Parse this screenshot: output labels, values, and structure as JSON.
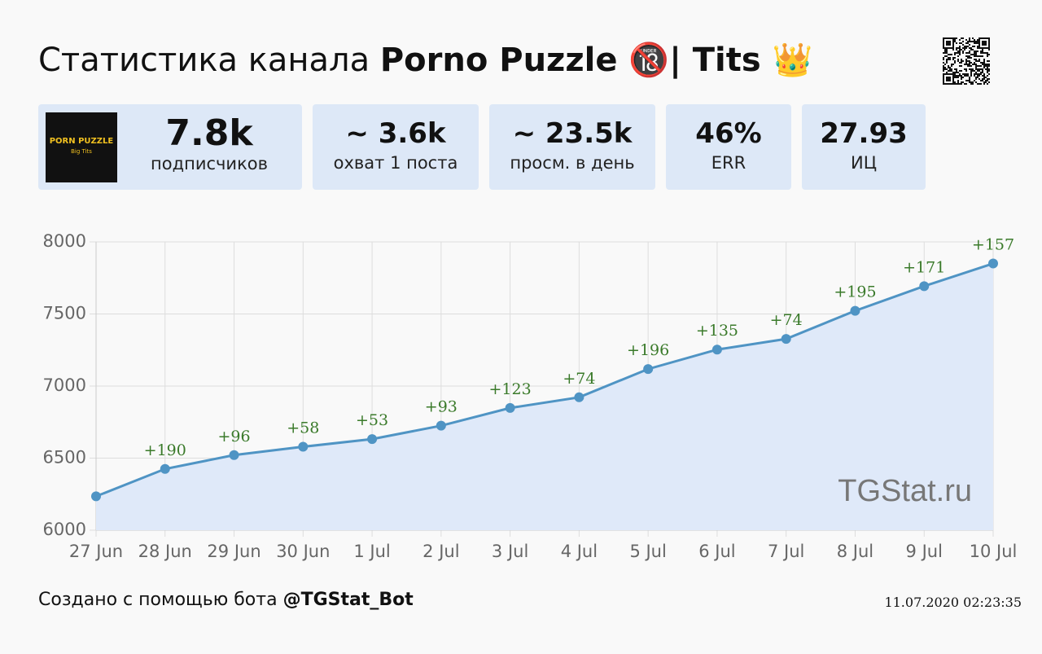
{
  "header": {
    "title_prefix": "Статистика канала",
    "title_channel": "Porno Puzzle 🔞| Tits 👑"
  },
  "logo": {
    "line1": "PORN PUZZLE",
    "line2": "Big Tits"
  },
  "cards": [
    {
      "value": "7.8k",
      "label": "подписчиков"
    },
    {
      "value": "~ 3.6k",
      "label": "охват 1 поста"
    },
    {
      "value": "~ 23.5k",
      "label": "просм. в день"
    },
    {
      "value": "46%",
      "label": "ERR"
    },
    {
      "value": "27.93",
      "label": "ИЦ"
    }
  ],
  "chart_data": {
    "type": "area",
    "categories": [
      "27 Jun",
      "28 Jun",
      "29 Jun",
      "30 Jun",
      "1 Jul",
      "2 Jul",
      "3 Jul",
      "4 Jul",
      "5 Jul",
      "6 Jul",
      "7 Jul",
      "8 Jul",
      "9 Jul",
      "10 Jul"
    ],
    "values": [
      6235,
      6425,
      6521,
      6579,
      6632,
      6725,
      6848,
      6922,
      7118,
      7253,
      7327,
      7522,
      7693,
      7850
    ],
    "gains": [
      null,
      "+190",
      "+96",
      "+58",
      "+53",
      "+93",
      "+123",
      "+74",
      "+196",
      "+135",
      "+74",
      "+195",
      "+171",
      "+157"
    ],
    "color": "#4f94c4",
    "fill": "#dfe9f9",
    "ylim": [
      6000,
      8000
    ],
    "yticks": [
      6000,
      6500,
      7000,
      7500,
      8000
    ],
    "grid": true,
    "watermark": "TGStat.ru"
  },
  "footer": {
    "prefix": "Создано с помощью бота",
    "bot": "@TGStat_Bot",
    "timestamp": "11.07.2020 02:23:35"
  }
}
